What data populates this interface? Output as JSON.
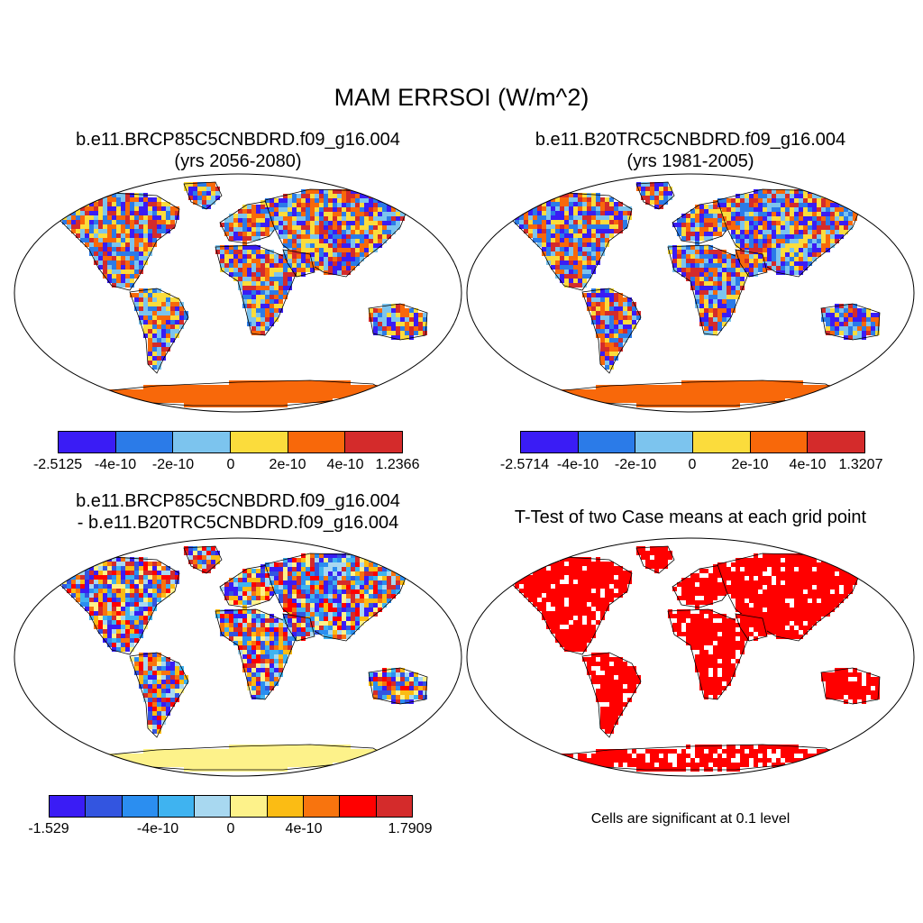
{
  "title": "MAM ERRSOI (W/m^2)",
  "panels": {
    "p1": {
      "title_line1": "b.e11.BRCP85C5CNBDRD.f09_g16.004",
      "title_line2": "(yrs 2056-2080)",
      "colorbar": {
        "colors": [
          "#3a1cf5",
          "#2b7be8",
          "#7cc4ee",
          "#fbdc3c",
          "#f8680a",
          "#d42b2b"
        ],
        "labels": [
          "-2.5125",
          "-4e-10",
          "-2e-10",
          "0",
          "2e-10",
          "4e-10",
          "1.2366"
        ]
      }
    },
    "p2": {
      "title_line1": "b.e11.B20TRC5CNBDRD.f09_g16.004",
      "title_line2": "(yrs 1981-2005)",
      "colorbar": {
        "colors": [
          "#3a1cf5",
          "#2b7be8",
          "#7cc4ee",
          "#fbdc3c",
          "#f8680a",
          "#d42b2b"
        ],
        "labels": [
          "-2.5714",
          "-4e-10",
          "-2e-10",
          "0",
          "2e-10",
          "4e-10",
          "1.3207"
        ]
      }
    },
    "p3": {
      "title_line1": "b.e11.BRCP85C5CNBDRD.f09_g16.004",
      "title_line2": "- b.e11.B20TRC5CNBDRD.f09_g16.004",
      "colorbar": {
        "colors": [
          "#3a1cf5",
          "#3355e0",
          "#2b8ef0",
          "#3fb3f0",
          "#a8d8f0",
          "#fdf28a",
          "#fbbc14",
          "#f8740e",
          "#ff0000",
          "#d42b2b"
        ],
        "labels": [
          "-1.529",
          "-4e-10",
          "0",
          "4e-10",
          "1.7909"
        ]
      }
    },
    "p4": {
      "title_line1": "T-Test of two Case means at each grid point",
      "note": "Cells are significant at 0.1 level",
      "color": "#ff0000"
    }
  },
  "maps": {
    "p1": {
      "fill": "mixed",
      "antarctica": "#f8680a"
    },
    "p2": {
      "fill": "mixed",
      "antarctica": "#f8680a"
    },
    "p3": {
      "fill": "mixed",
      "antarctica": "#fdf28a"
    },
    "p4": {
      "fill": "significance",
      "antarctica": "#ff0000"
    }
  }
}
